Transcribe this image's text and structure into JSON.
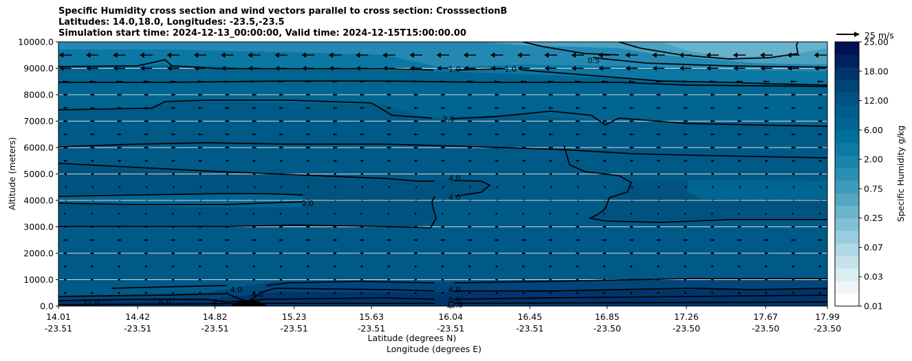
{
  "chart_data": {
    "type": "heatmap",
    "title_lines": [
      "Specific Humidity cross section and wind vectors parallel to cross section: CrosssectionB",
      "Latitudes: 14.0,18.0, Longitudes: -23.5,-23.5",
      "Simulation start time: 2024-12-13_00:00:00, Valid time: 2024-12-15T15:00:00.00"
    ],
    "ylabel": "Altitude (meters)",
    "xlabel_lines": [
      "Latitude (degrees N)",
      "Longitude (degrees E)"
    ],
    "ylim": [
      0,
      10000
    ],
    "y_ticks": [
      "0.0",
      "1000.0",
      "2000.0",
      "3000.0",
      "4000.0",
      "5000.0",
      "6000.0",
      "7000.0",
      "8000.0",
      "9000.0",
      "10000.0"
    ],
    "x_ticks": [
      {
        "lat": "14.01",
        "lon": "-23.51"
      },
      {
        "lat": "14.42",
        "lon": "-23.51"
      },
      {
        "lat": "14.82",
        "lon": "-23.51"
      },
      {
        "lat": "15.23",
        "lon": "-23.51"
      },
      {
        "lat": "15.63",
        "lon": "-23.51"
      },
      {
        "lat": "16.04",
        "lon": "-23.51"
      },
      {
        "lat": "16.45",
        "lon": "-23.51"
      },
      {
        "lat": "16.85",
        "lon": "-23.50"
      },
      {
        "lat": "17.26",
        "lon": "-23.50"
      },
      {
        "lat": "17.67",
        "lon": "-23.50"
      },
      {
        "lat": "17.99",
        "lon": "-23.50"
      }
    ],
    "colorbar": {
      "label": "Specific Humidity g/kg",
      "tick_labels": [
        "0.01",
        "0.03",
        "0.07",
        "0.25",
        "0.75",
        "2.00",
        "6.00",
        "12.00",
        "18.00",
        "25.00"
      ],
      "levels": 20,
      "colors": [
        "#ffffff",
        "#eef6f9",
        "#dbedf3",
        "#c6e3ec",
        "#b0d8e5",
        "#99cddd",
        "#82c1d5",
        "#6ab4cc",
        "#52a7c3",
        "#3d9bbb",
        "#2a8fb3",
        "#1a84ab",
        "#0c7aa3",
        "#006f9b",
        "#006593",
        "#005c8a",
        "#005282",
        "#004578",
        "#00346b",
        "#00215e",
        "#001055"
      ]
    },
    "quiver_key": {
      "label": "25 m/s",
      "speed": 25
    },
    "grid": true,
    "grid_axis": "y",
    "contour_labels": [
      {
        "text": "0.5",
        "lat": 16.78,
        "alt": 9300
      },
      {
        "text": "1.0",
        "lat": 16.06,
        "alt": 8980
      },
      {
        "text": "1.0",
        "lat": 16.35,
        "alt": 8980
      },
      {
        "text": "2.0",
        "lat": 16.03,
        "alt": 7080
      },
      {
        "text": "2.0",
        "lat": 15.3,
        "alt": 3900
      },
      {
        "text": "4.0",
        "lat": 16.06,
        "alt": 4850
      },
      {
        "text": "4.0",
        "lat": 16.06,
        "alt": 4120
      },
      {
        "text": "4.0",
        "lat": 16.06,
        "alt": 620
      },
      {
        "text": "8.0",
        "lat": 16.06,
        "alt": 250
      },
      {
        "text": "12.0",
        "lat": 16.06,
        "alt": 50
      },
      {
        "text": "4.0",
        "lat": 14.93,
        "alt": 620
      },
      {
        "text": "4.0",
        "lat": 15.04,
        "alt": 450
      },
      {
        "text": "8.0",
        "lat": 14.56,
        "alt": 150
      },
      {
        "text": "8.0",
        "lat": 14.84,
        "alt": 120
      },
      {
        "text": "12.0",
        "lat": 14.18,
        "alt": 150
      }
    ],
    "wind_rows": [
      {
        "alt": 9500,
        "u": -14
      },
      {
        "alt": 9000,
        "u": -13
      },
      {
        "alt": 8500,
        "u": -7
      },
      {
        "alt": 8000,
        "u": -5
      },
      {
        "alt": 7500,
        "u": -5
      },
      {
        "alt": 7000,
        "u": -5
      },
      {
        "alt": 6500,
        "u": -5
      },
      {
        "alt": 6000,
        "u": -5
      },
      {
        "alt": 5500,
        "u": -4
      },
      {
        "alt": 5000,
        "u": -3
      },
      {
        "alt": 4500,
        "u": -2
      },
      {
        "alt": 4000,
        "u": -1
      },
      {
        "alt": 3500,
        "u": 2
      },
      {
        "alt": 3000,
        "u": 4
      },
      {
        "alt": 2500,
        "u": 5
      },
      {
        "alt": 2000,
        "u": 4
      },
      {
        "alt": 1500,
        "u": 3
      },
      {
        "alt": 1000,
        "u": 3
      },
      {
        "alt": 500,
        "u": 3
      }
    ]
  }
}
